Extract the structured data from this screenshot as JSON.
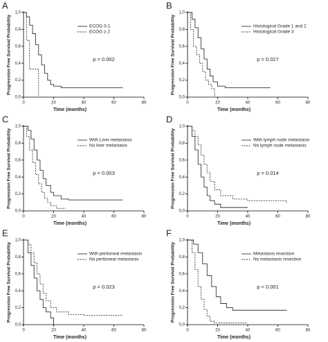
{
  "chart_data": [
    {
      "type": "step",
      "label": "A",
      "ylabel": "Progression Free Survival Probability",
      "xlabel": "Time (months)",
      "annotation": "p = 0.002",
      "xlim": [
        0,
        80
      ],
      "xticks": [
        0,
        20,
        40,
        60,
        80
      ],
      "ylim": [
        0,
        1
      ],
      "yticks": [
        {
          "value": 0,
          "label": "0,0"
        },
        {
          "value": 0.2,
          "label": "0,2"
        },
        {
          "value": 0.4,
          "label": "0,4"
        },
        {
          "value": 0.6,
          "label": "0,6"
        },
        {
          "value": 0.8,
          "label": "0,8"
        },
        {
          "value": 1,
          "label": "1,0"
        }
      ],
      "series": [
        {
          "name": "ECOG 0-1",
          "color": "#333333",
          "style": "solid",
          "x": [
            0,
            2,
            4,
            6,
            8,
            10,
            12,
            14,
            16,
            18,
            20,
            25,
            30,
            66
          ],
          "values": [
            1,
            0.95,
            0.85,
            0.75,
            0.62,
            0.5,
            0.38,
            0.28,
            0.2,
            0.15,
            0.13,
            0.11,
            0.11,
            0.11
          ]
        },
        {
          "name": "ECOG ≥ 2",
          "color": "#333333",
          "style": "dashed",
          "x": [
            0,
            2,
            4,
            8,
            10
          ],
          "values": [
            1,
            0.67,
            0.33,
            0.33,
            0
          ]
        }
      ]
    },
    {
      "type": "step",
      "label": "B",
      "ylabel": "Progression Free Survival Probability",
      "xlabel": "Time (months)",
      "annotation": "p = 0.027",
      "xlim": [
        0,
        80
      ],
      "xticks": [
        0,
        20,
        40,
        60,
        80
      ],
      "ylim": [
        0,
        1
      ],
      "yticks": [
        {
          "value": 0,
          "label": "0,0"
        },
        {
          "value": 0.2,
          "label": "0,2"
        },
        {
          "value": 0.4,
          "label": "0,4"
        },
        {
          "value": 0.6,
          "label": "0,6"
        },
        {
          "value": 0.8,
          "label": "0,8"
        },
        {
          "value": 1,
          "label": "1,0"
        }
      ],
      "series": [
        {
          "name": "Histological Grade 1 and 2",
          "color": "#333333",
          "style": "solid",
          "x": [
            0,
            3,
            5,
            7,
            9,
            11,
            13,
            15,
            17,
            20,
            25,
            30,
            40,
            55
          ],
          "values": [
            1,
            0.92,
            0.82,
            0.7,
            0.57,
            0.45,
            0.33,
            0.25,
            0.18,
            0.13,
            0.11,
            0.11,
            0.11,
            0.11
          ]
        },
        {
          "name": "Histological Grade 3",
          "color": "#333333",
          "style": "dashed",
          "x": [
            0,
            2,
            4,
            6,
            8,
            10,
            12,
            14,
            16,
            18
          ],
          "values": [
            1,
            0.8,
            0.6,
            0.5,
            0.4,
            0.3,
            0.2,
            0.15,
            0.1,
            0
          ]
        }
      ]
    },
    {
      "type": "step",
      "label": "C",
      "ylabel": "Progression Free Survival Probability",
      "xlabel": "Time (months)",
      "annotation": "p = 0.003",
      "xlim": [
        0,
        80
      ],
      "xticks": [
        0,
        20,
        40,
        60,
        80
      ],
      "ylim": [
        0,
        1
      ],
      "yticks": [
        {
          "value": 0,
          "label": "0,0"
        },
        {
          "value": 0.2,
          "label": "0,2"
        },
        {
          "value": 0.4,
          "label": "0,4"
        },
        {
          "value": 0.6,
          "label": "0,6"
        },
        {
          "value": 0.8,
          "label": "0,8"
        },
        {
          "value": 1,
          "label": "1,0"
        }
      ],
      "series": [
        {
          "name": "With Liver metastasis",
          "color": "#333333",
          "style": "solid",
          "x": [
            0,
            3,
            5,
            7,
            9,
            11,
            13,
            15,
            18,
            20,
            25,
            30,
            40,
            66
          ],
          "values": [
            1,
            0.95,
            0.85,
            0.72,
            0.6,
            0.48,
            0.38,
            0.3,
            0.22,
            0.18,
            0.14,
            0.13,
            0.13,
            0.13
          ]
        },
        {
          "name": "No liver metastasis",
          "color": "#333333",
          "style": "dashed",
          "x": [
            0,
            2,
            4,
            6,
            8,
            10,
            12,
            14,
            16,
            18,
            22,
            28
          ],
          "values": [
            1,
            0.88,
            0.72,
            0.57,
            0.43,
            0.32,
            0.22,
            0.15,
            0.1,
            0.06,
            0.03,
            0.03
          ]
        }
      ]
    },
    {
      "type": "step",
      "label": "D",
      "ylabel": "Progression Free Survival Probability",
      "xlabel": "Time (months)",
      "annotation": "p = 0.014",
      "xlim": [
        0,
        80
      ],
      "xticks": [
        0,
        20,
        40,
        60,
        80
      ],
      "ylim": [
        0,
        1
      ],
      "yticks": [
        {
          "value": 0,
          "label": "0,0"
        },
        {
          "value": 0.2,
          "label": "0,2"
        },
        {
          "value": 0.4,
          "label": "0,4"
        },
        {
          "value": 0.6,
          "label": "0,6"
        },
        {
          "value": 0.8,
          "label": "0,8"
        },
        {
          "value": 1,
          "label": "1,0"
        }
      ],
      "series": [
        {
          "name": "With lymph node metastasis",
          "color": "#333333",
          "style": "solid",
          "x": [
            0,
            3,
            5,
            7,
            9,
            11,
            13,
            15,
            18,
            22,
            40
          ],
          "values": [
            1,
            0.88,
            0.72,
            0.55,
            0.4,
            0.28,
            0.18,
            0.12,
            0.08,
            0.04,
            0.04
          ]
        },
        {
          "name": "No lymph node metastasis",
          "color": "#333333",
          "style": "dashed",
          "x": [
            0,
            3,
            5,
            7,
            9,
            11,
            13,
            15,
            18,
            22,
            30,
            40,
            66
          ],
          "values": [
            1,
            0.95,
            0.88,
            0.78,
            0.66,
            0.55,
            0.45,
            0.35,
            0.25,
            0.18,
            0.14,
            0.12,
            0.1
          ]
        }
      ]
    },
    {
      "type": "step",
      "label": "E",
      "ylabel": "Progression Free Survival Probability",
      "xlabel": "Time (months)",
      "annotation": "p = 0.023",
      "xlim": [
        0,
        80
      ],
      "xticks": [
        0,
        20,
        40,
        60,
        80
      ],
      "ylim": [
        0,
        1
      ],
      "yticks": [
        {
          "value": 0,
          "label": "0,0"
        },
        {
          "value": 0.2,
          "label": "0,2"
        },
        {
          "value": 0.4,
          "label": "0,4"
        },
        {
          "value": 0.6,
          "label": "0,6"
        },
        {
          "value": 0.8,
          "label": "0,8"
        },
        {
          "value": 1,
          "label": "1,0"
        }
      ],
      "series": [
        {
          "name": "With peritoneal metastasis",
          "color": "#333333",
          "style": "solid",
          "x": [
            0,
            3,
            5,
            7,
            9,
            11,
            13,
            15,
            18,
            20
          ],
          "values": [
            1,
            0.85,
            0.7,
            0.55,
            0.4,
            0.3,
            0.2,
            0.15,
            0.08,
            0
          ]
        },
        {
          "name": "No peritoneal metastasis",
          "color": "#333333",
          "style": "dashed",
          "x": [
            0,
            3,
            5,
            7,
            9,
            11,
            13,
            15,
            18,
            22,
            30,
            40,
            66
          ],
          "values": [
            1,
            0.95,
            0.85,
            0.73,
            0.6,
            0.48,
            0.37,
            0.28,
            0.2,
            0.15,
            0.12,
            0.11,
            0.11
          ]
        }
      ]
    },
    {
      "type": "step",
      "label": "F",
      "ylabel": "Progression Free Survival Probability",
      "xlabel": "Time (months)",
      "annotation": "p < 0.001",
      "xlim": [
        0,
        80
      ],
      "xticks": [
        0,
        20,
        40,
        60,
        80
      ],
      "ylim": [
        0,
        1
      ],
      "yticks": [
        {
          "value": 0,
          "label": "0,0"
        },
        {
          "value": 0.2,
          "label": "0,2"
        },
        {
          "value": 0.4,
          "label": "0,4"
        },
        {
          "value": 0.6,
          "label": "0,6"
        },
        {
          "value": 0.8,
          "label": "0,8"
        },
        {
          "value": 1,
          "label": "1,0"
        }
      ],
      "series": [
        {
          "name": "Metastasis resection",
          "color": "#333333",
          "style": "solid",
          "x": [
            0,
            4,
            7,
            10,
            13,
            16,
            19,
            22,
            26,
            30,
            40,
            66
          ],
          "values": [
            1,
            0.95,
            0.85,
            0.72,
            0.58,
            0.45,
            0.33,
            0.25,
            0.2,
            0.17,
            0.17,
            0.17
          ]
        },
        {
          "name": "No metastasis resection",
          "color": "#333333",
          "style": "dashed",
          "x": [
            0,
            3,
            5,
            7,
            9,
            11,
            13,
            15,
            18,
            40
          ],
          "values": [
            1,
            0.85,
            0.65,
            0.45,
            0.3,
            0.18,
            0.1,
            0.04,
            0.02,
            0.02
          ]
        }
      ]
    }
  ]
}
